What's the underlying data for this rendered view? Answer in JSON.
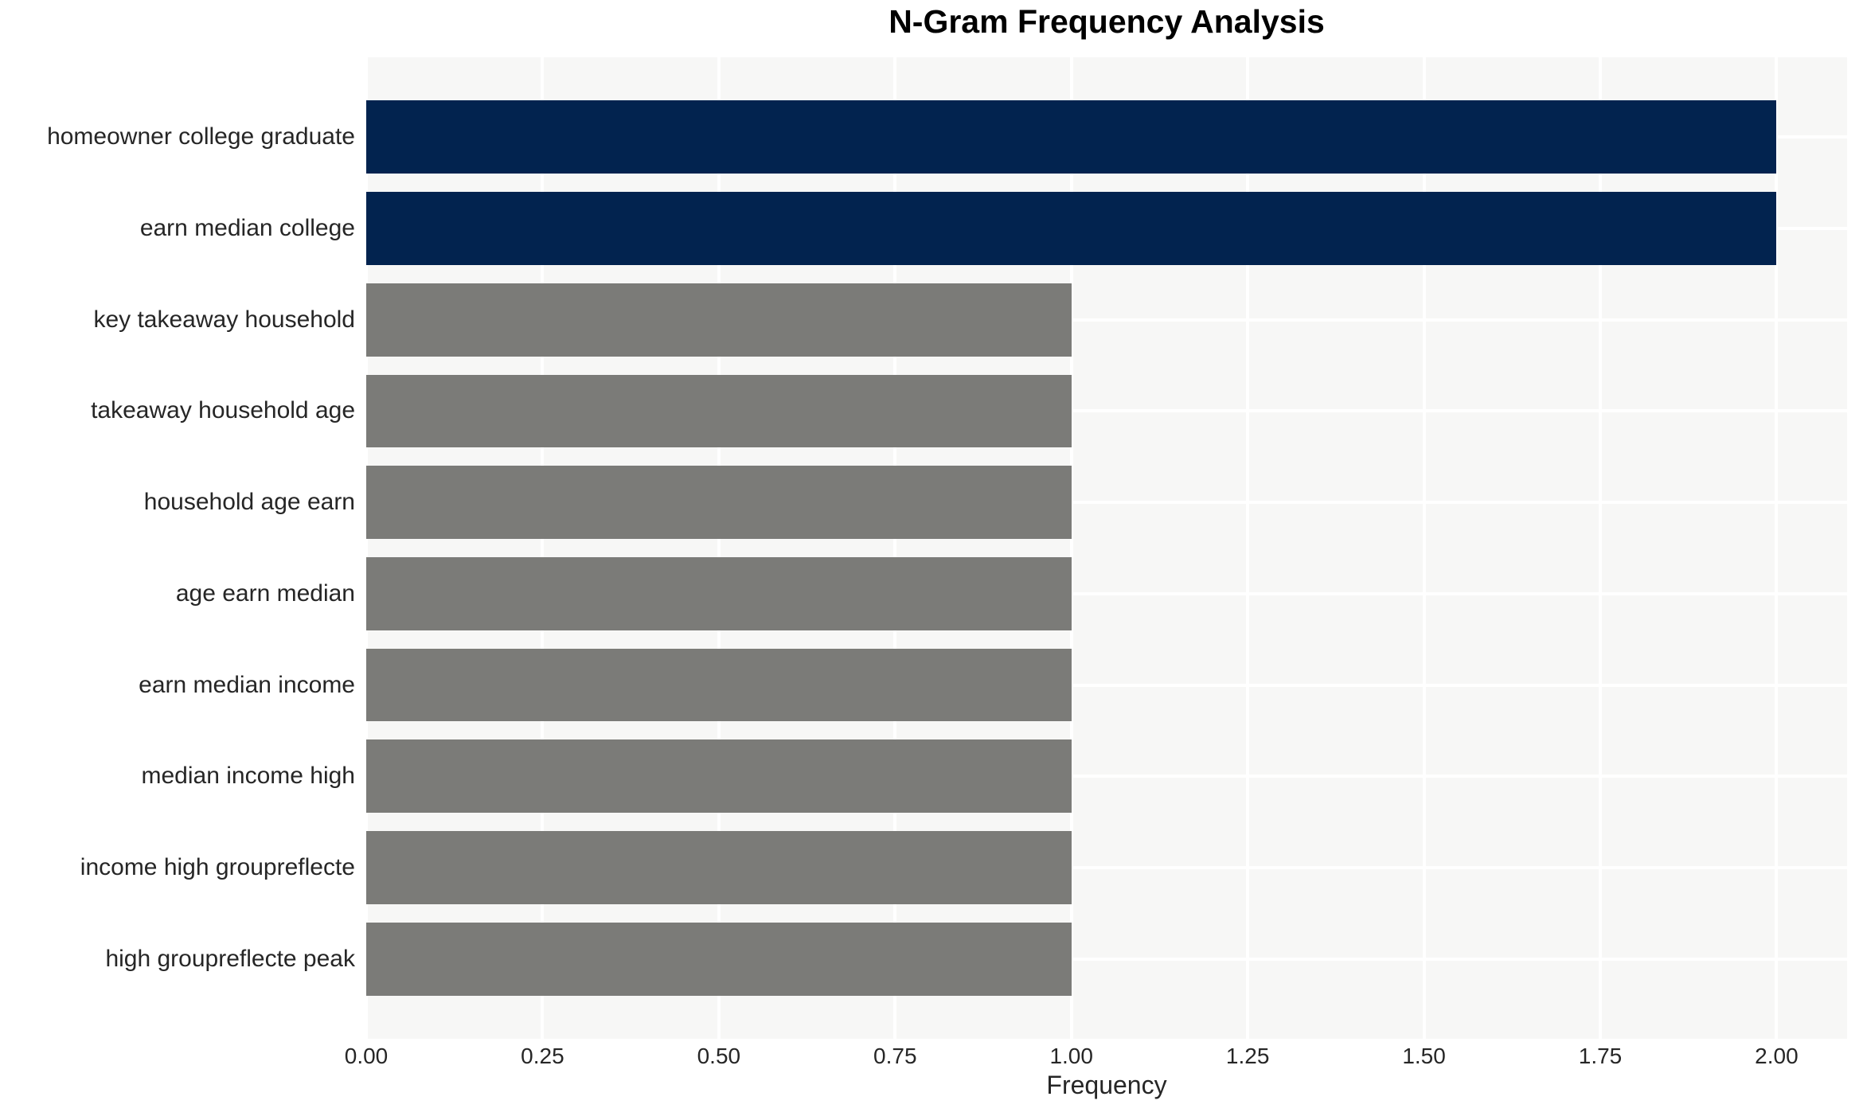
{
  "chart_data": {
    "type": "bar",
    "orientation": "horizontal",
    "title": "N-Gram Frequency Analysis",
    "xlabel": "Frequency",
    "ylabel": "",
    "categories": [
      "homeowner college graduate",
      "earn median college",
      "key takeaway household",
      "takeaway household age",
      "household age earn",
      "age earn median",
      "earn median income",
      "median income high",
      "income high groupreflecte",
      "high groupreflecte peak"
    ],
    "values": [
      2,
      2,
      1,
      1,
      1,
      1,
      1,
      1,
      1,
      1
    ],
    "bar_colors": [
      "#02234f",
      "#02234f",
      "#7b7b78",
      "#7b7b78",
      "#7b7b78",
      "#7b7b78",
      "#7b7b78",
      "#7b7b78",
      "#7b7b78",
      "#7b7b78"
    ],
    "highlight_color": "#02234f",
    "base_color": "#7b7b78",
    "xlim": [
      0,
      2.1
    ],
    "xticks": [
      0,
      0.25,
      0.5,
      0.75,
      1.0,
      1.25,
      1.5,
      1.75,
      2.0
    ],
    "xtick_labels": [
      "0.00",
      "0.25",
      "0.50",
      "0.75",
      "1.00",
      "1.25",
      "1.50",
      "1.75",
      "2.00"
    ],
    "grid": true,
    "legend": false,
    "plot_background": "#f7f7f6",
    "grid_color": "#ffffff",
    "text_color": "#262626",
    "title_color": "#000000",
    "figure_background": "#ffffff"
  }
}
